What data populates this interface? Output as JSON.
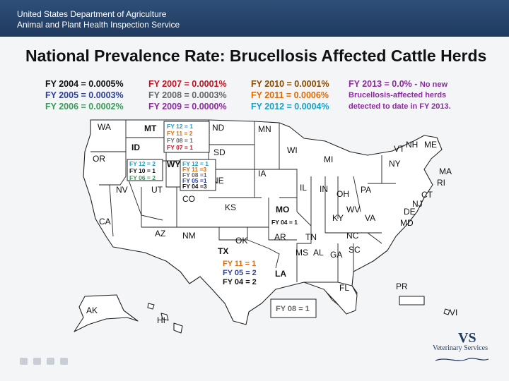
{
  "header": {
    "agency_line1": "United States Department of Agriculture",
    "agency_line2": "Animal and Plant Health Inspection Service"
  },
  "title": "National Prevalence Rate: Brucellosis Affected Cattle Herds",
  "legend": {
    "col1": [
      "FY 2004 = 0.0005%",
      "FY 2005 = 0.0003%",
      "FY 2006 = 0.0002%"
    ],
    "col2": [
      "FY 2007 = 0.0001%",
      "FY 2008 = 0.0003%",
      "FY 2009 = 0.0000%"
    ],
    "col3": [
      "FY 2010 = 0.0001%",
      "FY 2011 = 0.0006%",
      "FY 2012 = 0.0004%"
    ],
    "col4": "FY 2013 = 0.0% -",
    "note": [
      "No new",
      "Brucellosis-affected herds",
      "detected to date in FY 2013."
    ]
  },
  "colors": {
    "banner": "#1f3a5f",
    "black": "#111111",
    "blue": "#2c3f99",
    "green": "#3c9a5a",
    "red": "#c0121e",
    "gray": "#666666",
    "purple": "#8d2aa0",
    "orange": "#e06a00",
    "teal": "#1a9fc7"
  },
  "states": {
    "WA": "WA",
    "OR": "OR",
    "CA": "CA",
    "NV": "NV",
    "ID": "ID",
    "MT": "MT",
    "WY": "WY",
    "UT": "UT",
    "AZ": "AZ",
    "CO": "CO",
    "NM": "NM",
    "ND": "ND",
    "SD": "SD",
    "NE": "NE",
    "KS": "KS",
    "OK": "OK",
    "TX": "TX",
    "MN": "MN",
    "IA": "IA",
    "MO": "MO",
    "AR": "AR",
    "LA": "LA",
    "WI": "WI",
    "IL": "IL",
    "MI": "MI",
    "IN": "IN",
    "OH": "OH",
    "KY": "KY",
    "TN": "TN",
    "MS": "MS",
    "AL": "AL",
    "GA": "GA",
    "FL": "FL",
    "SC": "SC",
    "NC": "NC",
    "VA": "VA",
    "WV": "WV",
    "PA": "PA",
    "NY": "NY",
    "VT": "VT",
    "NH": "NH",
    "ME": "ME",
    "MA": "MA",
    "RI": "RI",
    "CT": "CT",
    "NJ": "NJ",
    "DE": "DE",
    "MD": "MD",
    "AK": "AK",
    "HI": "HI",
    "PR": "PR",
    "VI": "VI"
  },
  "annotations": {
    "MT": [
      "FY 12 = 1",
      "FY 11 = 2",
      "FY 08 = 1",
      "FY 07 = 1"
    ],
    "ID": [
      "FY 12 = 2",
      "FY 10 = 1",
      "FY 06 = 2"
    ],
    "WY": [
      "FY 12 = 1",
      "FY 11 =3",
      "FY 08 =1",
      "FY 05 =1",
      "FY 04 =3"
    ],
    "MO": [
      "FY 04 = 1"
    ],
    "TX": [
      "FY 11 = 1",
      "FY 05 = 2",
      "FY 04 = 2"
    ],
    "LA": [
      "FY 08 = 1"
    ]
  },
  "logo": {
    "name": "Veterinary Services"
  }
}
